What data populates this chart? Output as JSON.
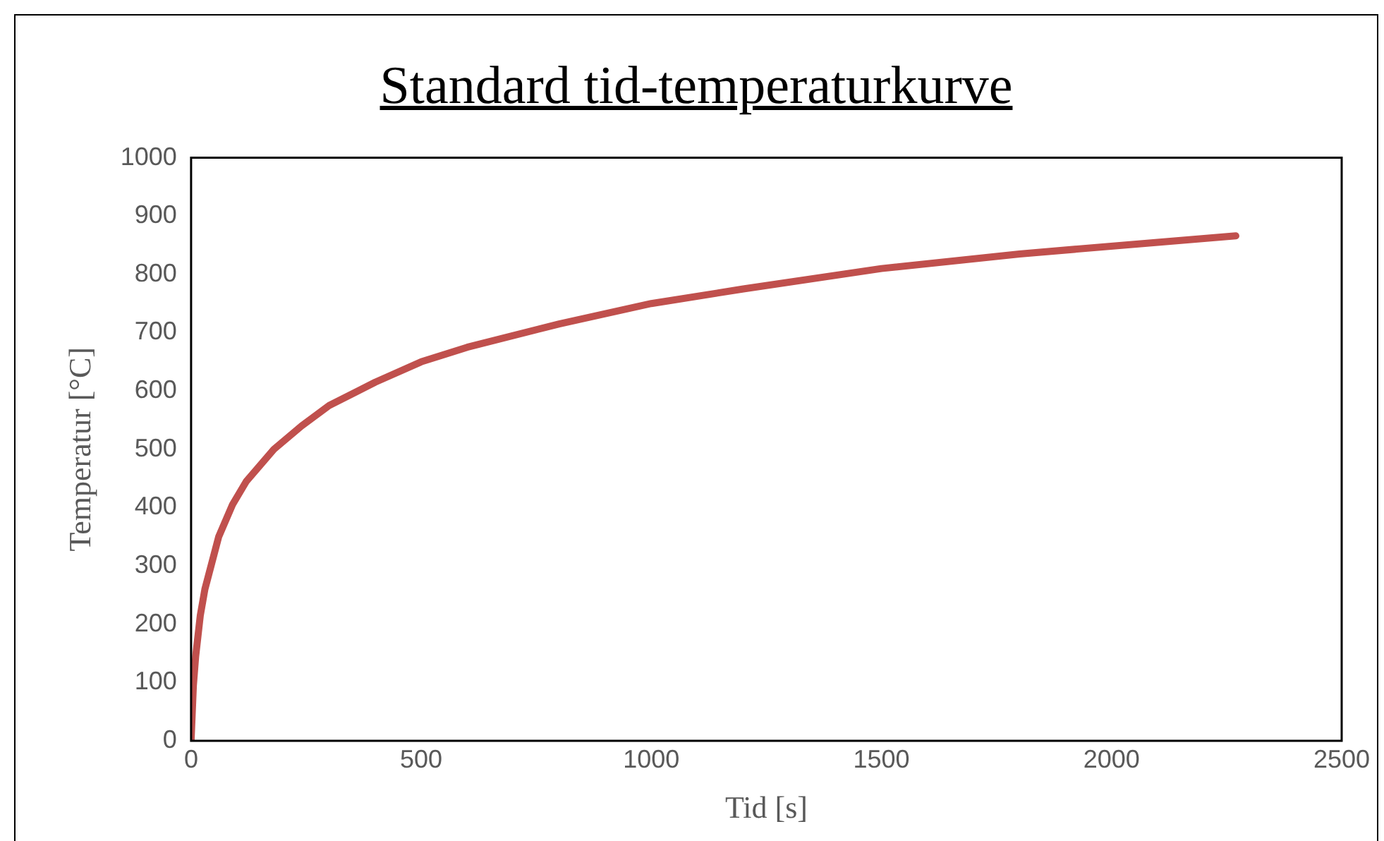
{
  "chart_data": {
    "type": "line",
    "title": "Standard tid-temperaturkurve",
    "xlabel": "Tid [s]",
    "ylabel": "Temperatur [°C]",
    "xlim": [
      0,
      2500
    ],
    "xticks": [
      0,
      500,
      1000,
      1500,
      2000,
      2500
    ],
    "ylim": [
      0,
      1000
    ],
    "yticks": [
      0,
      100,
      200,
      300,
      400,
      500,
      600,
      700,
      800,
      900,
      1000
    ],
    "grid": false,
    "legend": false,
    "marker": "none",
    "line_style": "solid",
    "series": [
      {
        "color": "#c0504d",
        "x": [
          0,
          5,
          10,
          20,
          30,
          60,
          90,
          120,
          180,
          240,
          300,
          400,
          500,
          600,
          800,
          1000,
          1200,
          1500,
          1800,
          2100,
          2270
        ],
        "values": [
          0,
          95,
          145,
          215,
          260,
          350,
          405,
          445,
          500,
          540,
          575,
          615,
          650,
          675,
          715,
          750,
          775,
          810,
          835,
          855,
          866
        ]
      }
    ]
  }
}
